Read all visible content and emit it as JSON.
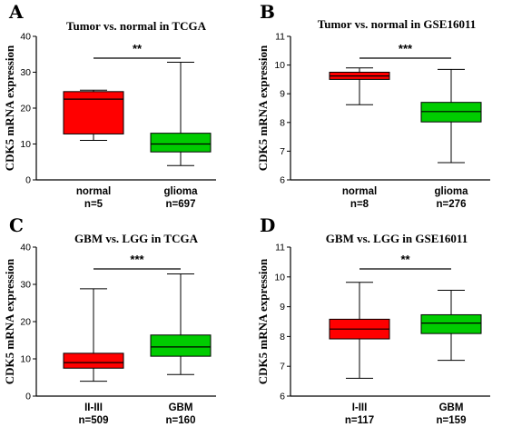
{
  "panels": [
    {
      "letter": "A",
      "title": "Tumor vs. normal in TCGA",
      "ylabel": "CDK5 mRNA expression",
      "significance": "**"
    },
    {
      "letter": "B",
      "title": "Tumor vs. normal in GSE16011",
      "ylabel": "CDK5 mRNA expression",
      "significance": "***"
    },
    {
      "letter": "C",
      "title": "GBM vs. LGG in TCGA",
      "ylabel": "CDK5 mRNA expression",
      "significance": "***"
    },
    {
      "letter": "D",
      "title": "GBM vs. LGG in GSE16011",
      "ylabel": "CDK5 mRNA expression",
      "significance": "**"
    }
  ],
  "colors": {
    "red": "#ff0000",
    "green": "#00cc00"
  },
  "chart_data": [
    {
      "type": "box",
      "title": "Tumor vs. normal in TCGA",
      "ylabel": "CDK5 mRNA expression",
      "ylim": [
        0,
        40
      ],
      "yticks": [
        0,
        10,
        20,
        30,
        40
      ],
      "significance": "**",
      "groups": [
        {
          "name": "normal",
          "n_label": "n=5",
          "min": 11,
          "q1": 12.8,
          "median": 22.5,
          "q3": 24.6,
          "max": 25,
          "color": "red"
        },
        {
          "name": "glioma",
          "n_label": "n=697",
          "min": 4,
          "q1": 7.8,
          "median": 10,
          "q3": 13,
          "max": 32.8,
          "color": "green"
        }
      ]
    },
    {
      "type": "box",
      "title": "Tumor vs. normal in GSE16011",
      "ylabel": "CDK5 mRNA expression",
      "ylim": [
        6,
        11
      ],
      "yticks": [
        6,
        7,
        8,
        9,
        10,
        11
      ],
      "significance": "***",
      "groups": [
        {
          "name": "normal",
          "n_label": "n=8",
          "min": 8.62,
          "q1": 9.5,
          "median": 9.62,
          "q3": 9.75,
          "max": 9.9,
          "color": "red"
        },
        {
          "name": "glioma",
          "n_label": "n=276",
          "min": 6.6,
          "q1": 8.02,
          "median": 8.38,
          "q3": 8.7,
          "max": 9.85,
          "color": "green"
        }
      ]
    },
    {
      "type": "box",
      "title": "GBM vs. LGG in TCGA",
      "ylabel": "CDK5 mRNA expression",
      "ylim": [
        0,
        40
      ],
      "yticks": [
        0,
        10,
        20,
        30,
        40
      ],
      "significance": "***",
      "groups": [
        {
          "name": "II-III",
          "n_label": "n=509",
          "min": 4,
          "q1": 7.5,
          "median": 9,
          "q3": 11.5,
          "max": 28.8,
          "color": "red"
        },
        {
          "name": "GBM",
          "n_label": "n=160",
          "min": 5.8,
          "q1": 10.7,
          "median": 13.2,
          "q3": 16.4,
          "max": 32.8,
          "color": "green"
        }
      ]
    },
    {
      "type": "box",
      "title": "GBM vs. LGG in GSE16011",
      "ylabel": "CDK5 mRNA expression",
      "ylim": [
        6,
        11
      ],
      "yticks": [
        6,
        7,
        8,
        9,
        10,
        11
      ],
      "significance": "**",
      "groups": [
        {
          "name": "I-III",
          "n_label": "n=117",
          "min": 6.6,
          "q1": 7.92,
          "median": 8.25,
          "q3": 8.58,
          "max": 9.82,
          "color": "red"
        },
        {
          "name": "GBM",
          "n_label": "n=159",
          "min": 7.2,
          "q1": 8.1,
          "median": 8.45,
          "q3": 8.73,
          "max": 9.55,
          "color": "green"
        }
      ]
    }
  ]
}
